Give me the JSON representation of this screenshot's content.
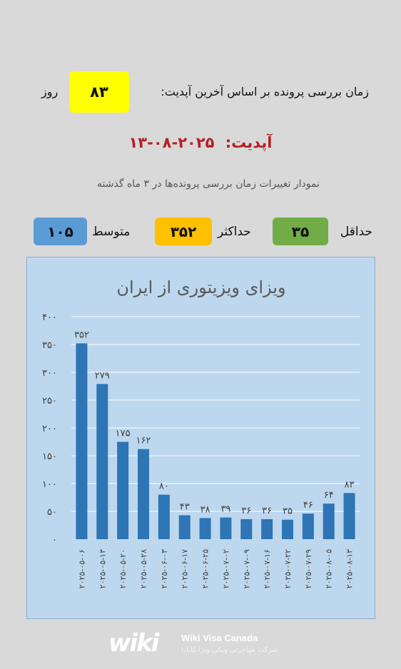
{
  "header": {
    "processing_text": "زمان بررسی پرونده بر اساس آخرین آپدیت:",
    "processing_days": "۸۳",
    "processing_unit": "روز",
    "update_label": "آپدیت:",
    "update_date": "۲۰۲۵-۰۸-۱۳",
    "chart_caption": "نمودار تغییرات زمان بررسی پرونده‌ها در ۳ ماه گذشته"
  },
  "stats": {
    "min_label": "حداقل",
    "min_value": "۳۵",
    "max_label": "حداکثر",
    "max_value": "۳۵۲",
    "avg_label": "متوسط",
    "avg_value": "۱۰۵"
  },
  "colors": {
    "background": "#d9d9d9",
    "yellow": "#ffff00",
    "update_red": "#b22222",
    "min_green": "#70ad47",
    "max_gold": "#ffc000",
    "avg_blue": "#5b9bd5",
    "chart_bg": "#bdd7ee",
    "bar": "#2e75b6"
  },
  "chart_data": {
    "type": "bar",
    "title": "ویزای ویزیتوری از ایران",
    "categories": [
      "۲۰۲۵-۰۵-۰۶",
      "۲۰۲۵-۰۵-۱۳",
      "۲۰۲۵-۰۵-۲۰",
      "۲۰۲۵-۰۵-۲۸",
      "۲۰۲۵-۰۶-۰۳",
      "۲۰۲۵-۰۶-۱۷",
      "۲۰۲۵-۰۶-۲۵",
      "۲۰۲۵-۰۷-۰۲",
      "۲۰۲۵-۰۷-۰۹",
      "۲۰۲۵-۰۷-۱۶",
      "۲۰۲۵-۰۷-۲۲",
      "۲۰۲۵-۰۷-۲۹",
      "۲۰۲۵-۰۸-۰۵",
      "۲۰۲۵-۰۸-۱۳"
    ],
    "values": [
      352,
      279,
      175,
      162,
      80,
      43,
      38,
      39,
      36,
      36,
      35,
      46,
      64,
      83
    ],
    "value_labels": [
      "۳۵۲",
      "۲۷۹",
      "۱۷۵",
      "۱۶۲",
      "۸۰",
      "۴۳",
      "۳۸",
      "۳۹",
      "۳۶",
      "۳۶",
      "۳۵",
      "۴۶",
      "۶۴",
      "۸۳"
    ],
    "yticks": [
      0,
      50,
      100,
      150,
      200,
      250,
      300,
      350,
      400
    ],
    "ytick_labels": [
      "۰",
      "۵۰",
      "۱۰۰",
      "۱۵۰",
      "۲۰۰",
      "۲۵۰",
      "۳۰۰",
      "۳۵۰",
      "۴۰۰"
    ],
    "ylim": [
      0,
      400
    ],
    "grid": true,
    "legend": "none"
  },
  "footer": {
    "logo_text": "wiki",
    "brand": "Wiki Visa Canada",
    "subtitle": "شرکت مهاجرتی ویکی ویزا کانادا"
  }
}
